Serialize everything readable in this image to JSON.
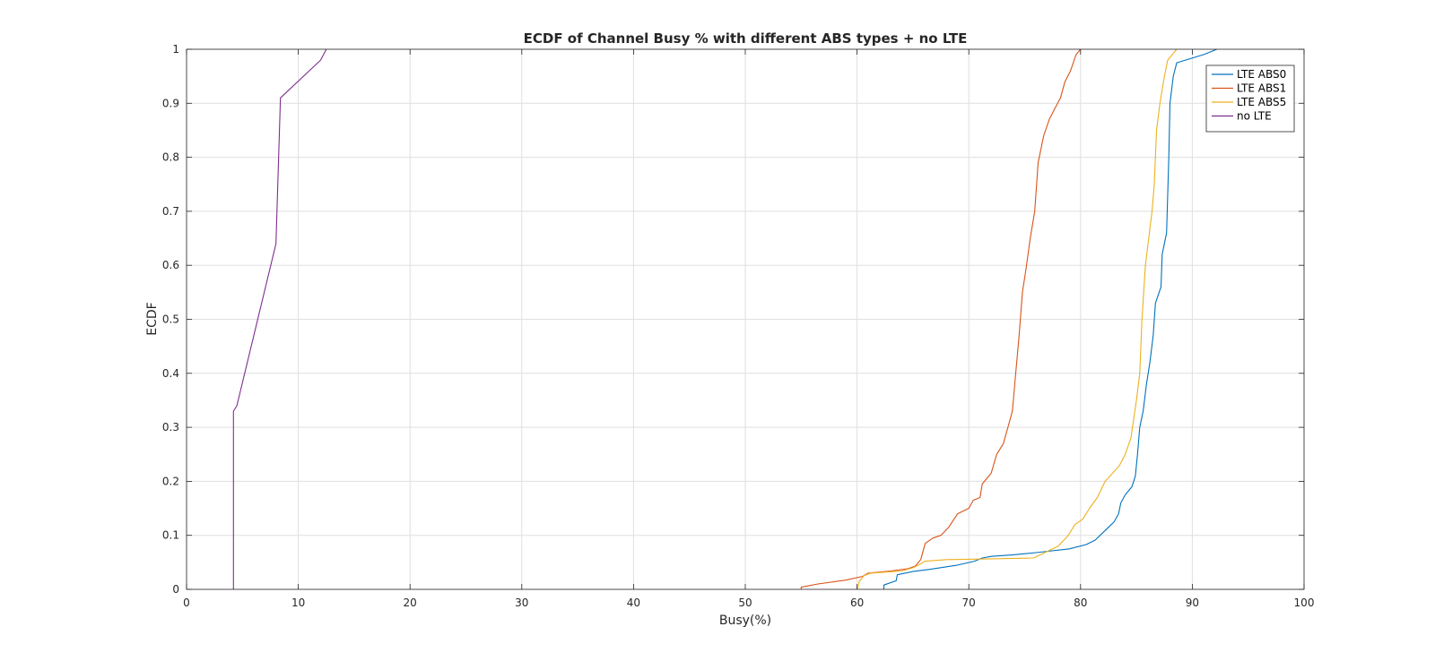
{
  "chart_data": {
    "type": "line",
    "title": "ECDF of Channel Busy % with different ABS types + no LTE",
    "xlabel": "Busy(%)",
    "ylabel": "ECDF",
    "xlim": [
      0,
      100
    ],
    "ylim": [
      0,
      1
    ],
    "xticks": [
      "0",
      "10",
      "20",
      "30",
      "40",
      "50",
      "60",
      "70",
      "80",
      "90",
      "100"
    ],
    "yticks": [
      "0",
      "0.1",
      "0.2",
      "0.3",
      "0.4",
      "0.5",
      "0.6",
      "0.7",
      "0.8",
      "0.9",
      "1"
    ],
    "grid": true,
    "legend_position": "top-right",
    "series": [
      {
        "name": "LTE ABS0",
        "color": "#0072BD",
        "points": [
          [
            62.4,
            0.0
          ],
          [
            62.4,
            0.008
          ],
          [
            63.5,
            0.016
          ],
          [
            63.6,
            0.027
          ],
          [
            65.0,
            0.033
          ],
          [
            66.5,
            0.037
          ],
          [
            69.0,
            0.045
          ],
          [
            70.5,
            0.052
          ],
          [
            71.2,
            0.058
          ],
          [
            72.0,
            0.061
          ],
          [
            74.0,
            0.064
          ],
          [
            76.0,
            0.068
          ],
          [
            79.0,
            0.075
          ],
          [
            80.5,
            0.083
          ],
          [
            81.3,
            0.091
          ],
          [
            82.0,
            0.105
          ],
          [
            82.5,
            0.115
          ],
          [
            83.0,
            0.125
          ],
          [
            83.4,
            0.14
          ],
          [
            83.6,
            0.16
          ],
          [
            84.0,
            0.175
          ],
          [
            84.6,
            0.19
          ],
          [
            84.9,
            0.21
          ],
          [
            85.1,
            0.25
          ],
          [
            85.3,
            0.3
          ],
          [
            85.6,
            0.33
          ],
          [
            85.9,
            0.38
          ],
          [
            86.2,
            0.42
          ],
          [
            86.5,
            0.47
          ],
          [
            86.7,
            0.53
          ],
          [
            87.2,
            0.56
          ],
          [
            87.3,
            0.62
          ],
          [
            87.7,
            0.66
          ],
          [
            87.9,
            0.8
          ],
          [
            88.0,
            0.9
          ],
          [
            88.3,
            0.95
          ],
          [
            88.6,
            0.975
          ],
          [
            91.0,
            0.99
          ],
          [
            92.2,
            1.0
          ]
        ]
      },
      {
        "name": "LTE ABS1",
        "color": "#D95319",
        "points": [
          [
            55.0,
            0.0
          ],
          [
            55.0,
            0.004
          ],
          [
            56.5,
            0.01
          ],
          [
            59.0,
            0.017
          ],
          [
            60.5,
            0.024
          ],
          [
            61.0,
            0.03
          ],
          [
            63.0,
            0.034
          ],
          [
            64.5,
            0.038
          ],
          [
            65.2,
            0.043
          ],
          [
            65.7,
            0.055
          ],
          [
            66.1,
            0.085
          ],
          [
            66.8,
            0.095
          ],
          [
            67.5,
            0.1
          ],
          [
            68.2,
            0.115
          ],
          [
            69.0,
            0.14
          ],
          [
            70.0,
            0.15
          ],
          [
            70.4,
            0.165
          ],
          [
            71.0,
            0.17
          ],
          [
            71.2,
            0.195
          ],
          [
            72.0,
            0.215
          ],
          [
            72.5,
            0.25
          ],
          [
            73.1,
            0.27
          ],
          [
            73.5,
            0.3
          ],
          [
            73.9,
            0.33
          ],
          [
            74.2,
            0.4
          ],
          [
            74.5,
            0.47
          ],
          [
            74.8,
            0.55
          ],
          [
            75.1,
            0.59
          ],
          [
            75.5,
            0.65
          ],
          [
            75.9,
            0.7
          ],
          [
            76.2,
            0.79
          ],
          [
            76.7,
            0.84
          ],
          [
            77.2,
            0.87
          ],
          [
            77.7,
            0.89
          ],
          [
            78.2,
            0.91
          ],
          [
            78.6,
            0.94
          ],
          [
            79.1,
            0.96
          ],
          [
            79.6,
            0.99
          ],
          [
            80.0,
            1.0
          ]
        ]
      },
      {
        "name": "LTE ABS5",
        "color": "#EDB120",
        "points": [
          [
            60.0,
            0.0
          ],
          [
            60.1,
            0.005
          ],
          [
            60.2,
            0.015
          ],
          [
            60.6,
            0.025
          ],
          [
            61.2,
            0.03
          ],
          [
            64.0,
            0.034
          ],
          [
            65.0,
            0.04
          ],
          [
            65.5,
            0.045
          ],
          [
            66.1,
            0.052
          ],
          [
            68.0,
            0.055
          ],
          [
            71.0,
            0.056
          ],
          [
            75.8,
            0.058
          ],
          [
            76.8,
            0.068
          ],
          [
            78.0,
            0.08
          ],
          [
            78.9,
            0.1
          ],
          [
            79.5,
            0.12
          ],
          [
            80.2,
            0.13
          ],
          [
            80.8,
            0.15
          ],
          [
            81.5,
            0.17
          ],
          [
            82.2,
            0.2
          ],
          [
            83.1,
            0.22
          ],
          [
            83.5,
            0.23
          ],
          [
            84.0,
            0.25
          ],
          [
            84.5,
            0.28
          ],
          [
            85.0,
            0.35
          ],
          [
            85.3,
            0.4
          ],
          [
            85.5,
            0.5
          ],
          [
            85.8,
            0.6
          ],
          [
            86.1,
            0.65
          ],
          [
            86.4,
            0.7
          ],
          [
            86.6,
            0.75
          ],
          [
            86.8,
            0.85
          ],
          [
            87.1,
            0.9
          ],
          [
            87.5,
            0.95
          ],
          [
            87.8,
            0.98
          ],
          [
            88.6,
            1.0
          ]
        ]
      },
      {
        "name": "no LTE",
        "color": "#7E2F8E",
        "points": [
          [
            4.2,
            0.0
          ],
          [
            4.2,
            0.33
          ],
          [
            4.5,
            0.34
          ],
          [
            8.0,
            0.64
          ],
          [
            8.4,
            0.91
          ],
          [
            12.0,
            0.98
          ],
          [
            12.5,
            1.0
          ]
        ]
      }
    ]
  }
}
